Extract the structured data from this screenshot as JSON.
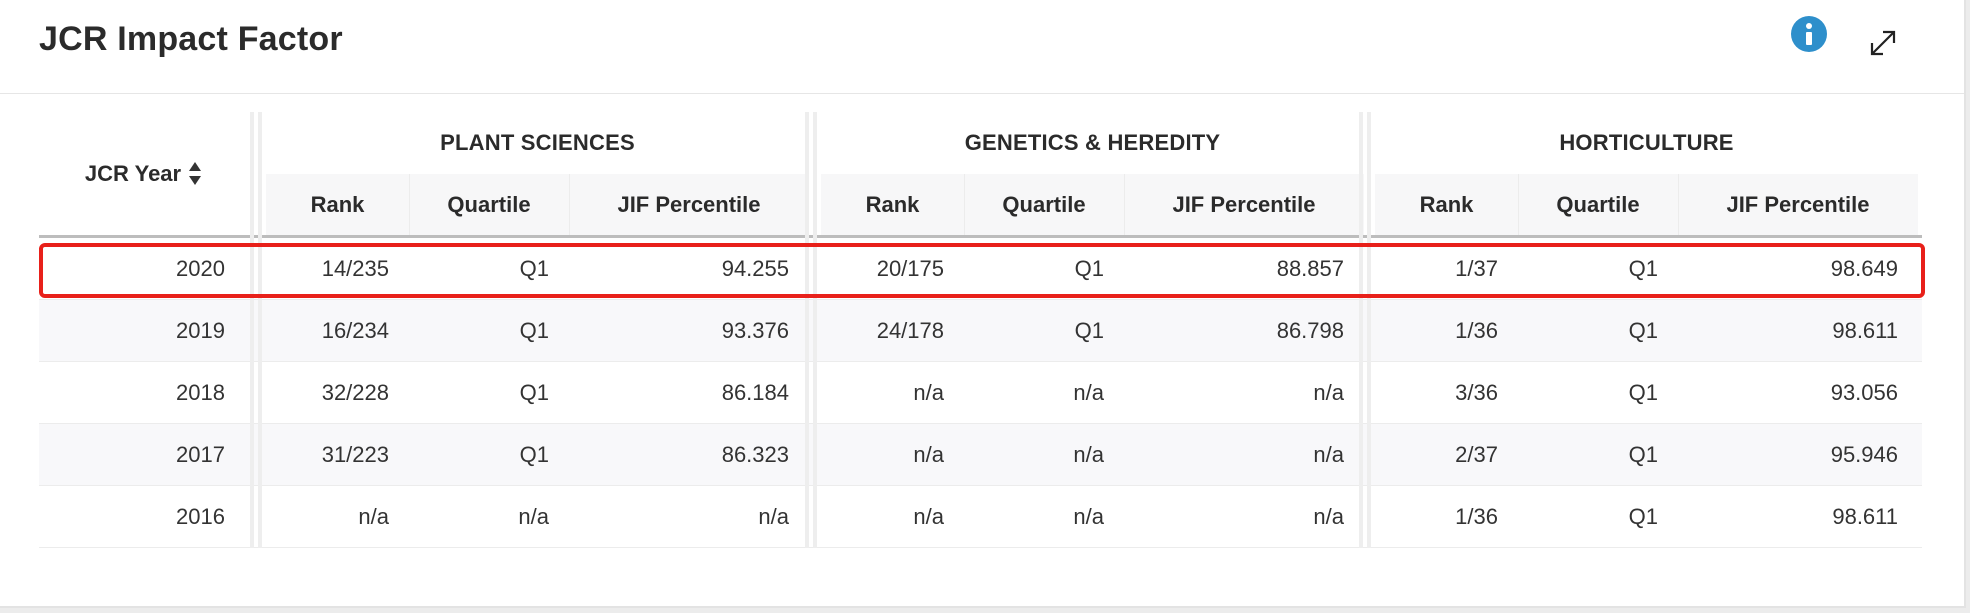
{
  "header": {
    "title": "JCR Impact Factor",
    "info_icon": "info-icon",
    "expand_icon": "expand-icon",
    "accent_color": "#2e8fcb",
    "highlight_color": "#e8201a"
  },
  "table": {
    "year_label": "JCR Year",
    "groups": [
      {
        "name": "PLANT SCIENCES",
        "columns": [
          "Rank",
          "Quartile",
          "JIF Percentile"
        ]
      },
      {
        "name": "GENETICS & HEREDITY",
        "columns": [
          "Rank",
          "Quartile",
          "JIF Percentile"
        ]
      },
      {
        "name": "HORTICULTURE",
        "columns": [
          "Rank",
          "Quartile",
          "JIF Percentile"
        ]
      }
    ],
    "rows": [
      {
        "year": "2020",
        "highlighted": true,
        "values": [
          [
            "14/235",
            "Q1",
            "94.255"
          ],
          [
            "20/175",
            "Q1",
            "88.857"
          ],
          [
            "1/37",
            "Q1",
            "98.649"
          ]
        ]
      },
      {
        "year": "2019",
        "values": [
          [
            "16/234",
            "Q1",
            "93.376"
          ],
          [
            "24/178",
            "Q1",
            "86.798"
          ],
          [
            "1/36",
            "Q1",
            "98.611"
          ]
        ]
      },
      {
        "year": "2018",
        "values": [
          [
            "32/228",
            "Q1",
            "86.184"
          ],
          [
            "n/a",
            "n/a",
            "n/a"
          ],
          [
            "3/36",
            "Q1",
            "93.056"
          ]
        ]
      },
      {
        "year": "2017",
        "values": [
          [
            "31/223",
            "Q1",
            "86.323"
          ],
          [
            "n/a",
            "n/a",
            "n/a"
          ],
          [
            "2/37",
            "Q1",
            "95.946"
          ]
        ]
      },
      {
        "year": "2016",
        "values": [
          [
            "n/a",
            "n/a",
            "n/a"
          ],
          [
            "n/a",
            "n/a",
            "n/a"
          ],
          [
            "1/36",
            "Q1",
            "98.611"
          ]
        ]
      }
    ]
  }
}
